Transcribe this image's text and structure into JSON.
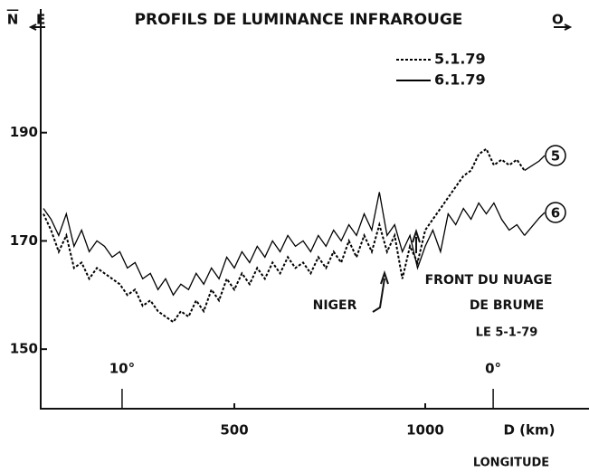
{
  "chart_data": {
    "type": "line",
    "title": "PROFILS DE LUMINANCE INFRAROUGE",
    "ylabel": "N",
    "xlabel": "D (km)",
    "x2label": "LONGITUDE",
    "left_label": "E",
    "right_label": "O",
    "annotations": [
      "NIGER",
      "FRONT DU NUAGE",
      "DE BRUME",
      "LE 5-1-79"
    ],
    "xlim": [
      0,
      1410
    ],
    "ylim": [
      139,
      212
    ],
    "xticks": [
      500,
      1000
    ],
    "yticks": [
      150,
      170,
      190
    ],
    "x2ticks": [
      {
        "value": 206,
        "label": "10°"
      },
      {
        "value": 1178,
        "label": "0°"
      }
    ],
    "x": [
      0,
      20,
      40,
      60,
      80,
      100,
      120,
      140,
      160,
      180,
      200,
      220,
      240,
      260,
      280,
      300,
      320,
      340,
      360,
      380,
      400,
      420,
      440,
      460,
      480,
      500,
      520,
      540,
      560,
      580,
      600,
      620,
      640,
      660,
      680,
      700,
      720,
      740,
      760,
      780,
      800,
      820,
      840,
      860,
      880,
      900,
      920,
      940,
      960,
      980,
      1000,
      1020,
      1040,
      1060,
      1080,
      1100,
      1120,
      1140,
      1160,
      1180,
      1200,
      1220,
      1240,
      1260
    ],
    "series": [
      {
        "name": "5.1.79",
        "tag": "5",
        "color": "#000000",
        "style": "dashed",
        "values": [
          175,
          172,
          168,
          171,
          165,
          166,
          163,
          165,
          164,
          163,
          162,
          160,
          161,
          158,
          159,
          157,
          156,
          155,
          157,
          156,
          159,
          157,
          161,
          159,
          163,
          161,
          164,
          162,
          165,
          163,
          166,
          164,
          167,
          165,
          166,
          164,
          167,
          165,
          168,
          166,
          170,
          167,
          171,
          168,
          173,
          168,
          171,
          163,
          169,
          166,
          172,
          174,
          176,
          178,
          180,
          182,
          183,
          186,
          187,
          184,
          185,
          184,
          185,
          183
        ]
      },
      {
        "name": "6.1.79",
        "tag": "6",
        "color": "#000000",
        "style": "solid",
        "values": [
          176,
          174,
          171,
          175,
          169,
          172,
          168,
          170,
          169,
          167,
          168,
          165,
          166,
          163,
          164,
          161,
          163,
          160,
          162,
          161,
          164,
          162,
          165,
          163,
          167,
          165,
          168,
          166,
          169,
          167,
          170,
          168,
          171,
          169,
          170,
          168,
          171,
          169,
          172,
          170,
          173,
          171,
          175,
          172,
          179,
          171,
          173,
          168,
          171,
          165,
          169,
          172,
          168,
          175,
          173,
          176,
          174,
          177,
          175,
          177,
          174,
          172,
          173,
          171
        ]
      }
    ]
  }
}
